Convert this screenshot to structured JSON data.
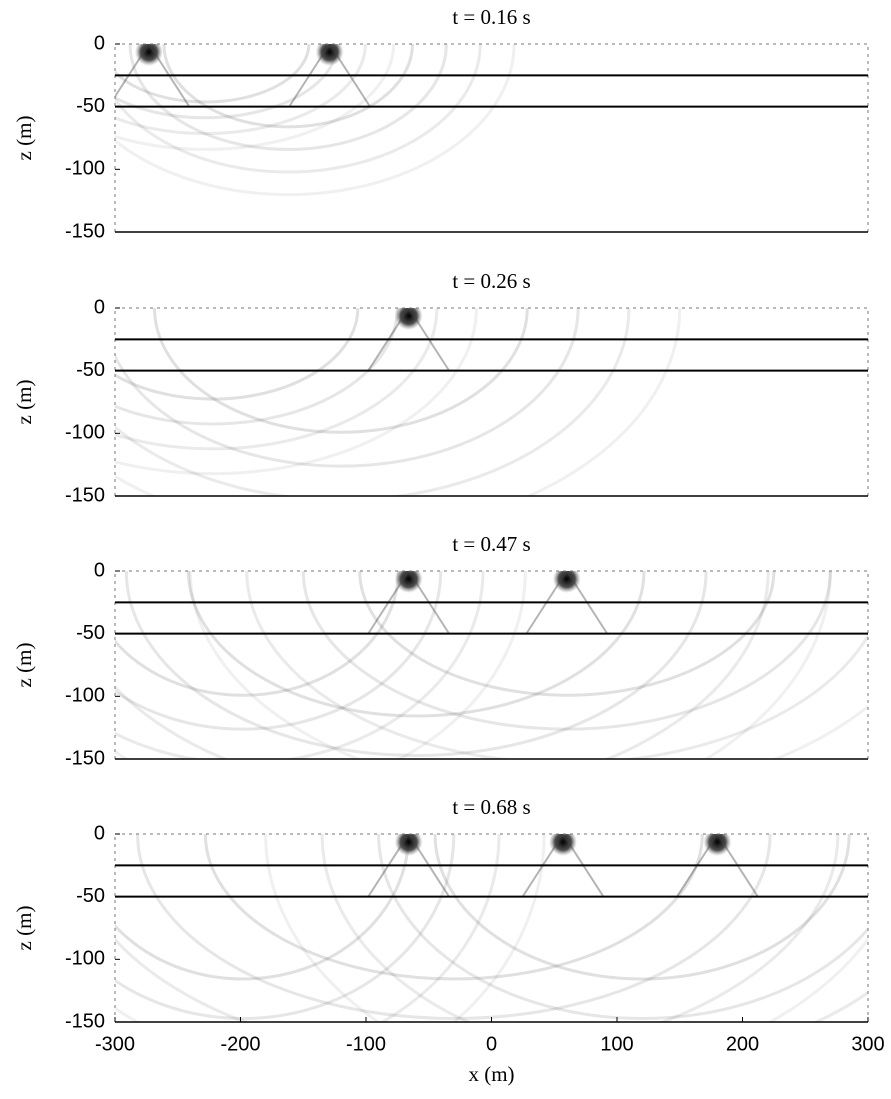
{
  "chart_data": [
    {
      "type": "wavefield",
      "title": "t = 0.16 s",
      "ylabel": "z (m)",
      "xlim": [
        -300,
        300
      ],
      "ylim": [
        -150,
        0
      ],
      "yticks": [
        0,
        -50,
        -100,
        -150
      ],
      "interfaces": [
        -25,
        -50
      ],
      "color": "#000000"
    },
    {
      "type": "wavefield",
      "title": "t = 0.26 s",
      "ylabel": "z (m)",
      "xlim": [
        -300,
        300
      ],
      "ylim": [
        -150,
        0
      ],
      "yticks": [
        0,
        -50,
        -100,
        -150
      ],
      "interfaces": [
        -25,
        -50
      ],
      "color": "#000000"
    },
    {
      "type": "wavefield",
      "title": "t = 0.47 s",
      "ylabel": "z (m)",
      "xlim": [
        -300,
        300
      ],
      "ylim": [
        -150,
        0
      ],
      "yticks": [
        0,
        -50,
        -100,
        -150
      ],
      "interfaces": [
        -25,
        -50
      ],
      "color": "#000000"
    },
    {
      "type": "wavefield",
      "title": "t = 0.68 s",
      "ylabel": "z (m)",
      "xlabel": "x (m)",
      "xlim": [
        -300,
        300
      ],
      "ylim": [
        -150,
        0
      ],
      "yticks": [
        0,
        -50,
        -100,
        -150
      ],
      "xticks": [
        -300,
        -200,
        -100,
        0,
        100,
        200,
        300
      ],
      "interfaces": [
        -25,
        -50
      ],
      "color": "#000000"
    }
  ]
}
